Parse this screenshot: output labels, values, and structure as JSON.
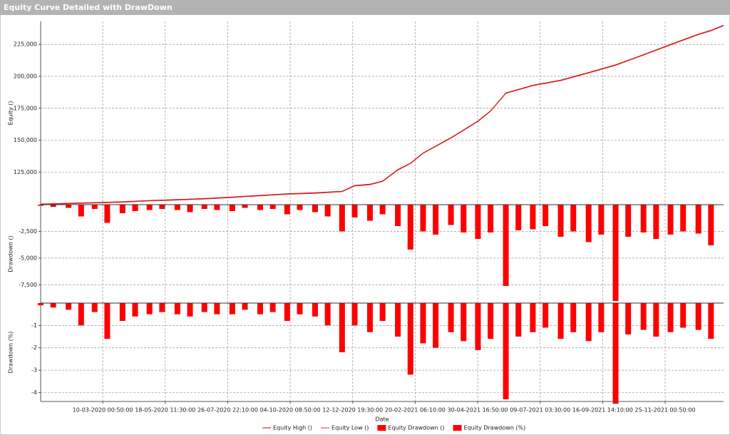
{
  "window_title": "Equity Curve Detailed with DrawDown",
  "chart_data": [
    {
      "type": "line",
      "ylabel": "Equity ()",
      "x": [
        "01-01-2020",
        "01-02-2020",
        "01-03-2020",
        "01-04-2020",
        "01-05-2020",
        "01-06-2020",
        "01-07-2020",
        "01-08-2020",
        "01-09-2020",
        "01-10-2020",
        "01-11-2020",
        "01-12-2020",
        "15-12-2020",
        "01-01-2021",
        "15-01-2021",
        "01-02-2021",
        "15-02-2021",
        "01-03-2021",
        "01-04-2021",
        "15-04-2021",
        "01-05-2021",
        "15-05-2021",
        "01-06-2021",
        "01-07-2021",
        "01-08-2021",
        "01-09-2021",
        "01-10-2021",
        "01-11-2021",
        "01-12-2021",
        "01-01-2022",
        "15-01-2022",
        "29-01-2022"
      ],
      "series": [
        {
          "name": "Equity High ()",
          "color": "#cc0000",
          "values": [
            100000,
            100600,
            101200,
            101800,
            102800,
            103500,
            104300,
            105500,
            106800,
            108000,
            108800,
            110000,
            114500,
            115500,
            118000,
            127000,
            132000,
            140000,
            152000,
            158000,
            165000,
            173000,
            187000,
            193000,
            197000,
            203000,
            209000,
            217000,
            225000,
            233000,
            236000,
            240000
          ]
        },
        {
          "name": "Equity Low ()",
          "color": "#e03030",
          "values": [
            99600,
            100200,
            100800,
            101400,
            102400,
            103100,
            103900,
            105100,
            106400,
            107600,
            108400,
            109600,
            114100,
            115100,
            117600,
            126600,
            131600,
            139600,
            151600,
            157600,
            164600,
            172600,
            186600,
            192600,
            196600,
            202600,
            208600,
            216600,
            224600,
            232600,
            235600,
            239600
          ]
        }
      ],
      "xlim": [
        "01-01-2020",
        "29-01-2022"
      ],
      "ylim": [
        99500,
        243000
      ],
      "yticks": [
        {
          "value": 125000,
          "label": "125,000"
        },
        {
          "value": 150000,
          "label": "150,000"
        },
        {
          "value": 175000,
          "label": "175,000"
        },
        {
          "value": 200000,
          "label": "200,000"
        },
        {
          "value": 225000,
          "label": "225,000"
        }
      ],
      "grid": true
    },
    {
      "type": "bar",
      "ylabel": "Drawdown ()",
      "x": [
        "01-01-2020",
        "15-01-2020",
        "01-02-2020",
        "15-02-2020",
        "01-03-2020",
        "15-03-2020",
        "01-04-2020",
        "15-04-2020",
        "01-05-2020",
        "15-05-2020",
        "01-06-2020",
        "15-06-2020",
        "01-07-2020",
        "15-07-2020",
        "01-08-2020",
        "15-08-2020",
        "01-09-2020",
        "15-09-2020",
        "01-10-2020",
        "15-10-2020",
        "01-11-2020",
        "15-11-2020",
        "01-12-2020",
        "15-12-2020",
        "01-01-2021",
        "15-01-2021",
        "01-02-2021",
        "15-02-2021",
        "01-03-2021",
        "15-03-2021",
        "01-04-2021",
        "15-04-2021",
        "01-05-2021",
        "15-05-2021",
        "01-06-2021",
        "15-06-2021",
        "01-07-2021",
        "15-07-2021",
        "01-08-2021",
        "15-08-2021",
        "01-09-2021",
        "15-09-2021",
        "01-10-2021",
        "15-10-2021",
        "01-11-2021",
        "15-11-2021",
        "01-12-2021",
        "15-12-2021",
        "01-01-2022",
        "15-01-2022"
      ],
      "series": [
        {
          "name": "Equity Drawdown ()",
          "color": "#ff0000",
          "values": [
            -100,
            -200,
            -300,
            -1100,
            -400,
            -1700,
            -800,
            -600,
            -500,
            -400,
            -500,
            -700,
            -400,
            -500,
            -600,
            -300,
            -500,
            -400,
            -900,
            -500,
            -700,
            -1100,
            -2500,
            -1200,
            -1500,
            -900,
            -2000,
            -4200,
            -2500,
            -2800,
            -1900,
            -2600,
            -3200,
            -2600,
            -7600,
            -2400,
            -2300,
            -2000,
            -3000,
            -2500,
            -3500,
            -2800,
            -9000,
            -3000,
            -2600,
            -3200,
            -2800,
            -2500,
            -2700,
            -3800
          ]
        }
      ],
      "xlim": [
        "01-01-2020",
        "29-01-2022"
      ],
      "ylim": [
        -9200,
        0
      ],
      "yticks": [
        {
          "value": -7500,
          "label": "-7,500"
        },
        {
          "value": -5000,
          "label": "-5,000"
        },
        {
          "value": -2500,
          "label": "-2,500"
        }
      ],
      "grid": true
    },
    {
      "type": "bar",
      "ylabel": "Drawdown (%)",
      "xlabel": "Date",
      "x": [
        "01-01-2020",
        "15-01-2020",
        "01-02-2020",
        "15-02-2020",
        "01-03-2020",
        "15-03-2020",
        "01-04-2020",
        "15-04-2020",
        "01-05-2020",
        "15-05-2020",
        "01-06-2020",
        "15-06-2020",
        "01-07-2020",
        "15-07-2020",
        "01-08-2020",
        "15-08-2020",
        "01-09-2020",
        "15-09-2020",
        "01-10-2020",
        "15-10-2020",
        "01-11-2020",
        "15-11-2020",
        "01-12-2020",
        "15-12-2020",
        "01-01-2021",
        "15-01-2021",
        "01-02-2021",
        "15-02-2021",
        "01-03-2021",
        "15-03-2021",
        "01-04-2021",
        "15-04-2021",
        "01-05-2021",
        "15-05-2021",
        "01-06-2021",
        "15-06-2021",
        "01-07-2021",
        "15-07-2021",
        "01-08-2021",
        "15-08-2021",
        "01-09-2021",
        "15-09-2021",
        "01-10-2021",
        "15-10-2021",
        "01-11-2021",
        "15-11-2021",
        "01-12-2021",
        "15-12-2021",
        "01-01-2022",
        "15-01-2022"
      ],
      "series": [
        {
          "name": "Equity Drawdown (%)",
          "color": "#ff0000",
          "values": [
            -0.1,
            -0.2,
            -0.3,
            -1.0,
            -0.4,
            -1.6,
            -0.8,
            -0.6,
            -0.5,
            -0.4,
            -0.5,
            -0.6,
            -0.4,
            -0.5,
            -0.5,
            -0.3,
            -0.5,
            -0.4,
            -0.8,
            -0.5,
            -0.6,
            -1.0,
            -2.2,
            -1.0,
            -1.3,
            -0.8,
            -1.5,
            -3.2,
            -1.8,
            -2.0,
            -1.3,
            -1.7,
            -2.1,
            -1.6,
            -4.3,
            -1.5,
            -1.3,
            -1.1,
            -1.6,
            -1.3,
            -1.7,
            -1.3,
            -4.5,
            -1.4,
            -1.2,
            -1.5,
            -1.3,
            -1.1,
            -1.2,
            -1.6
          ]
        }
      ],
      "xlim": [
        "01-01-2020",
        "29-01-2022"
      ],
      "ylim": [
        -4.4,
        0
      ],
      "yticks": [
        -4,
        -3,
        -2,
        -1
      ],
      "xticks": [
        "10-03-2020 00:50:00",
        "18-05-2020 11:30:00",
        "26-07-2020 22:10:00",
        "04-10-2020 08:50:00",
        "12-12-2020 19:30:00",
        "20-02-2021 06:10:00",
        "30-04-2021 16:50:00",
        "09-07-2021 03:30:00",
        "16-09-2021 14:10:00",
        "25-11-2021 00:50:00"
      ],
      "grid": true
    }
  ]
}
